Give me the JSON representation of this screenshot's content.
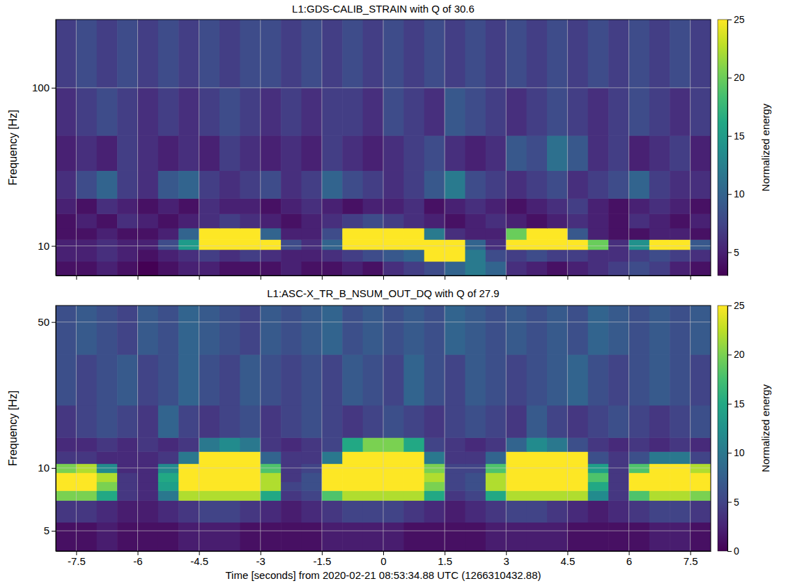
{
  "chart_data": [
    {
      "type": "heatmap",
      "title": "L1:GDS-CALIB_STRAIN with Q of 30.6",
      "y_label": "Frequency [Hz]",
      "xlim": [
        -8,
        8
      ],
      "xticks": [
        -7.5,
        -6,
        -4.5,
        -3,
        -1.5,
        0,
        1.5,
        3,
        4.5,
        6,
        7.5
      ],
      "ylim": [
        6.5,
        270
      ],
      "yticks": [
        10,
        100
      ],
      "log": "y",
      "grid": true,
      "tick_labels": "y",
      "x_bins": [
        -8,
        -7.5,
        -7,
        -6.5,
        -6,
        -5.5,
        -5,
        -4.5,
        -4,
        -3.5,
        -3,
        -2.5,
        -2,
        -1.5,
        -1,
        -0.5,
        0,
        0.5,
        1,
        1.5,
        2,
        2.5,
        3,
        3.5,
        4,
        4.5,
        5,
        5.5,
        6,
        6.5,
        7,
        7.5,
        8
      ],
      "y_bins": [
        6.5,
        8,
        9.5,
        11,
        13,
        16,
        20,
        30,
        50,
        100,
        270
      ],
      "values": [
        [
          4,
          4,
          5,
          4,
          3,
          4,
          5,
          5,
          4,
          4,
          4,
          5,
          4,
          4,
          5,
          4,
          6,
          7,
          8,
          10,
          12,
          10,
          6,
          5,
          4,
          5,
          6,
          7,
          8,
          7,
          5,
          4
        ],
        [
          5,
          5,
          6,
          5,
          4,
          5,
          6,
          7,
          6,
          7,
          6,
          5,
          5,
          6,
          7,
          8,
          9,
          10,
          25,
          25,
          12,
          8,
          7,
          8,
          7,
          7,
          6,
          6,
          7,
          8,
          7,
          6
        ],
        [
          5,
          5,
          6,
          5,
          5,
          8,
          15,
          25,
          25,
          25,
          25,
          8,
          6,
          10,
          25,
          25,
          25,
          25,
          25,
          25,
          10,
          6,
          25,
          25,
          25,
          25,
          20,
          6,
          14,
          25,
          25,
          9
        ],
        [
          4,
          4,
          5,
          4,
          4,
          5,
          10,
          25,
          25,
          25,
          10,
          5,
          5,
          8,
          25,
          25,
          25,
          25,
          12,
          6,
          5,
          5,
          20,
          25,
          25,
          9,
          5,
          4,
          4,
          5,
          5,
          4
        ],
        [
          4,
          5,
          4,
          6,
          5,
          4,
          5,
          6,
          7,
          6,
          5,
          4,
          5,
          6,
          7,
          8,
          7,
          6,
          5,
          4,
          5,
          6,
          5,
          4,
          5,
          6,
          5,
          4,
          6,
          5,
          4,
          5
        ],
        [
          5,
          4,
          6,
          5,
          4,
          5,
          4,
          6,
          5,
          5,
          4,
          5,
          6,
          5,
          4,
          5,
          5,
          6,
          4,
          5,
          6,
          5,
          4,
          5,
          6,
          7,
          5,
          4,
          5,
          6,
          5,
          4
        ],
        [
          6,
          8,
          10,
          7,
          6,
          9,
          10,
          7,
          6,
          7,
          8,
          6,
          7,
          10,
          8,
          7,
          6,
          7,
          9,
          12,
          8,
          7,
          6,
          7,
          8,
          6,
          7,
          8,
          10,
          7,
          6,
          6
        ],
        [
          5,
          6,
          5,
          7,
          6,
          5,
          6,
          5,
          7,
          6,
          5,
          6,
          5,
          7,
          6,
          5,
          6,
          7,
          8,
          6,
          5,
          6,
          9,
          8,
          11,
          9,
          6,
          7,
          5,
          6,
          7,
          5
        ],
        [
          6,
          7,
          8,
          7,
          6,
          7,
          6,
          7,
          8,
          7,
          6,
          7,
          6,
          7,
          7,
          6,
          8,
          7,
          6,
          9,
          8,
          7,
          6,
          7,
          8,
          7,
          6,
          7,
          8,
          7,
          6,
          7
        ],
        [
          7,
          8,
          7,
          8,
          7,
          8,
          7,
          8,
          7,
          8,
          8,
          7,
          8,
          7,
          8,
          7,
          8,
          7,
          8,
          7,
          8,
          7,
          8,
          7,
          8,
          7,
          8,
          7,
          8,
          7,
          8,
          7
        ]
      ],
      "colorbar": {
        "label": "Normalized energy",
        "lim": [
          3,
          25
        ],
        "ticks": [
          5,
          10,
          15,
          20,
          25
        ]
      }
    },
    {
      "type": "heatmap",
      "title": "L1:ASC-X_TR_B_NSUM_OUT_DQ with Q of 27.9",
      "x_label": "Time [seconds] from 2020-02-21 08:53:34.88 UTC (1266310432.88)",
      "y_label": "Frequency [Hz]",
      "xlim": [
        -8,
        8
      ],
      "xticks": [
        -7.5,
        -6,
        -4.5,
        -3,
        -1.5,
        0,
        1.5,
        3,
        4.5,
        6,
        7.5
      ],
      "ylim": [
        4,
        60
      ],
      "yticks": [
        5,
        10,
        50
      ],
      "log": "y",
      "grid": true,
      "x_bins": [
        -8,
        -7.5,
        -7,
        -6.5,
        -6,
        -5.5,
        -5,
        -4.5,
        -4,
        -3.5,
        -3,
        -2.5,
        -2,
        -1.5,
        -1,
        -0.5,
        0,
        0.5,
        1,
        1.5,
        2,
        2.5,
        3,
        3.5,
        4,
        4.5,
        5,
        5.5,
        6,
        6.5,
        7,
        7.5,
        8
      ],
      "y_bins": [
        4,
        5.5,
        7,
        7.8,
        8.6,
        9.5,
        10.5,
        12,
        14,
        20,
        35,
        60
      ],
      "values": [
        [
          1,
          1,
          2,
          1,
          1,
          1,
          2,
          2,
          2,
          1,
          1,
          1,
          1,
          2,
          2,
          2,
          2,
          1,
          1,
          1,
          1,
          2,
          2,
          2,
          2,
          1,
          1,
          1,
          1,
          2,
          2,
          1
        ],
        [
          4,
          4,
          3,
          2,
          2,
          3,
          4,
          5,
          5,
          4,
          3,
          2,
          3,
          4,
          5,
          5,
          5,
          4,
          3,
          2,
          3,
          4,
          5,
          5,
          4,
          3,
          2,
          3,
          4,
          5,
          5,
          4
        ],
        [
          20,
          20,
          15,
          4,
          3,
          10,
          22,
          22,
          22,
          22,
          15,
          4,
          5,
          18,
          22,
          22,
          22,
          22,
          15,
          4,
          5,
          15,
          22,
          22,
          22,
          22,
          12,
          4,
          18,
          22,
          22,
          20
        ],
        [
          25,
          25,
          20,
          4,
          3,
          14,
          25,
          25,
          25,
          25,
          22,
          5,
          6,
          25,
          25,
          25,
          25,
          25,
          20,
          5,
          6,
          22,
          25,
          25,
          25,
          25,
          15,
          4,
          25,
          25,
          25,
          25
        ],
        [
          25,
          25,
          22,
          4,
          3,
          15,
          25,
          25,
          25,
          25,
          22,
          4,
          6,
          25,
          25,
          25,
          25,
          25,
          22,
          5,
          6,
          22,
          25,
          25,
          25,
          25,
          18,
          4,
          25,
          25,
          25,
          25
        ],
        [
          20,
          22,
          12,
          3,
          3,
          12,
          25,
          25,
          25,
          25,
          18,
          4,
          5,
          25,
          25,
          25,
          25,
          25,
          20,
          5,
          5,
          18,
          25,
          25,
          25,
          25,
          14,
          4,
          18,
          25,
          25,
          22
        ],
        [
          4,
          4,
          3,
          3,
          3,
          4,
          10,
          25,
          25,
          25,
          8,
          4,
          4,
          10,
          25,
          25,
          25,
          25,
          10,
          4,
          4,
          8,
          25,
          25,
          25,
          25,
          6,
          4,
          6,
          10,
          10,
          5
        ],
        [
          3,
          3,
          4,
          3,
          4,
          3,
          4,
          10,
          12,
          10,
          4,
          3,
          4,
          5,
          15,
          20,
          20,
          15,
          5,
          4,
          3,
          4,
          8,
          12,
          10,
          6,
          4,
          3,
          4,
          3,
          4,
          3
        ],
        [
          4,
          5,
          6,
          5,
          4,
          8,
          5,
          4,
          5,
          6,
          4,
          5,
          6,
          5,
          4,
          5,
          6,
          5,
          4,
          5,
          6,
          5,
          4,
          7,
          5,
          4,
          5,
          6,
          5,
          4,
          5,
          6
        ],
        [
          6,
          5,
          6,
          7,
          5,
          6,
          8,
          6,
          5,
          7,
          6,
          5,
          6,
          5,
          7,
          6,
          5,
          8,
          6,
          5,
          7,
          6,
          5,
          6,
          7,
          8,
          6,
          5,
          6,
          7,
          6,
          5
        ],
        [
          6,
          7,
          6,
          5,
          7,
          6,
          8,
          7,
          6,
          5,
          7,
          6,
          7,
          8,
          6,
          7,
          6,
          7,
          6,
          8,
          7,
          6,
          7,
          6,
          7,
          6,
          8,
          7,
          6,
          7,
          6,
          7
        ]
      ],
      "colorbar": {
        "label": "Normalized energy",
        "lim": [
          0,
          25
        ],
        "ticks": [
          0,
          5,
          10,
          15,
          20,
          25
        ]
      }
    }
  ]
}
